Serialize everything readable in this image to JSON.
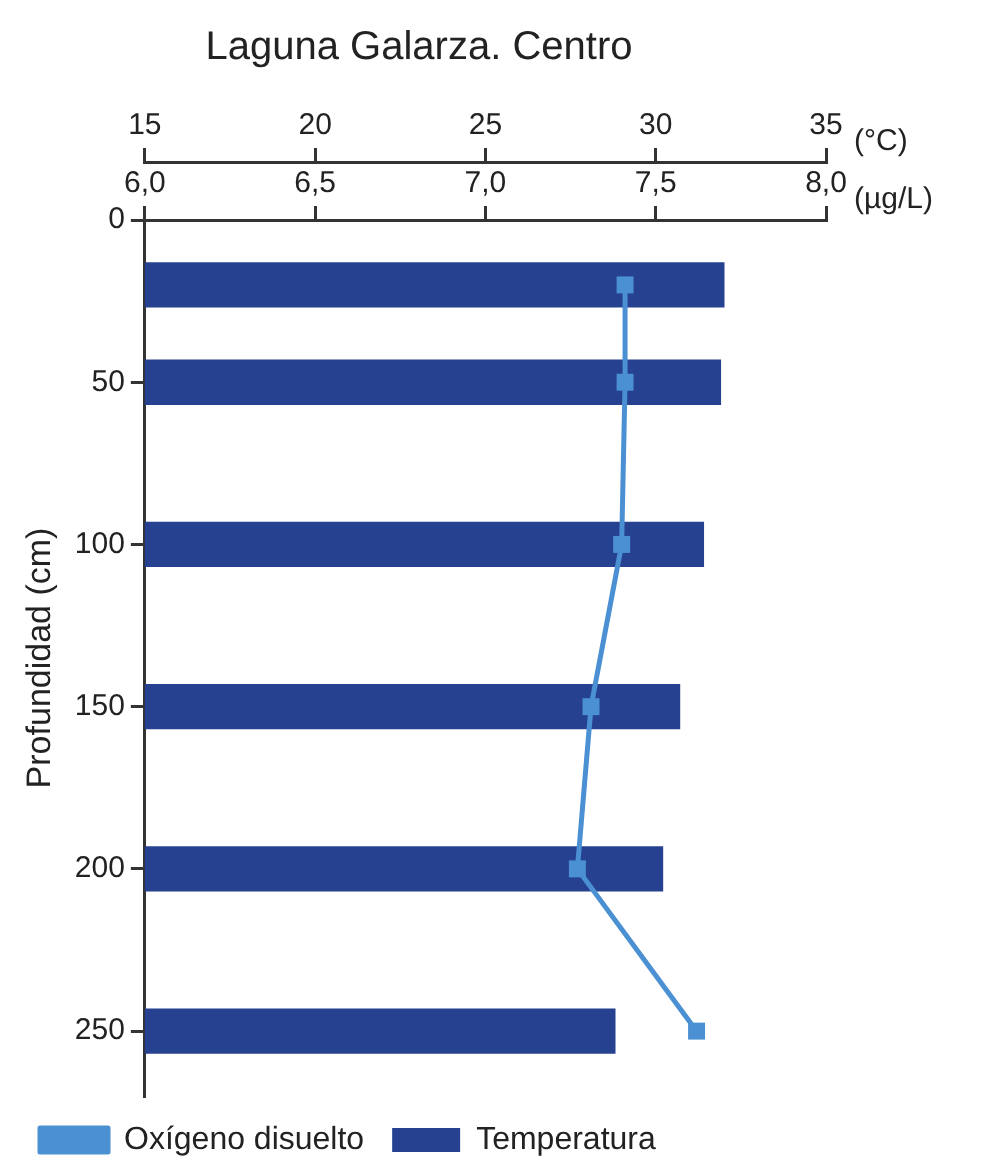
{
  "chart_data": {
    "type": "bar",
    "orientation": "horizontal",
    "title": "Laguna Galarza. Centro",
    "xlabel": "(°C)",
    "x2label": "(µg/L)",
    "ylabel": "Profundidad (cm)",
    "x": [
      20,
      50,
      100,
      150,
      200,
      250
    ],
    "xlim": [
      15,
      35
    ],
    "xticks": [
      15,
      20,
      25,
      30,
      35
    ],
    "x2lim": [
      6,
      8
    ],
    "x2ticks": [
      {
        "value": 6,
        "label": "6,0"
      },
      {
        "value": 6.5,
        "label": "6,5"
      },
      {
        "value": 7,
        "label": "7,0"
      },
      {
        "value": 7.5,
        "label": "7,5"
      },
      {
        "value": 8,
        "label": "8,0"
      }
    ],
    "ylim": [
      270,
      0
    ],
    "yticks": [
      0,
      50,
      100,
      150,
      200,
      250
    ],
    "series": [
      {
        "name": "Oxígeno disuelto",
        "type": "line",
        "axis": "x2",
        "color": "#4a90d2",
        "values": [
          7.41,
          7.41,
          7.4,
          7.31,
          7.27,
          7.62
        ]
      },
      {
        "name": "Temperatura",
        "color": "#26418f",
        "values": [
          32,
          31.9,
          31.4,
          30.7,
          30.2,
          28.8
        ]
      }
    ],
    "legend": "bottom",
    "grid": false,
    "marker": "square",
    "line_style": "solid"
  }
}
